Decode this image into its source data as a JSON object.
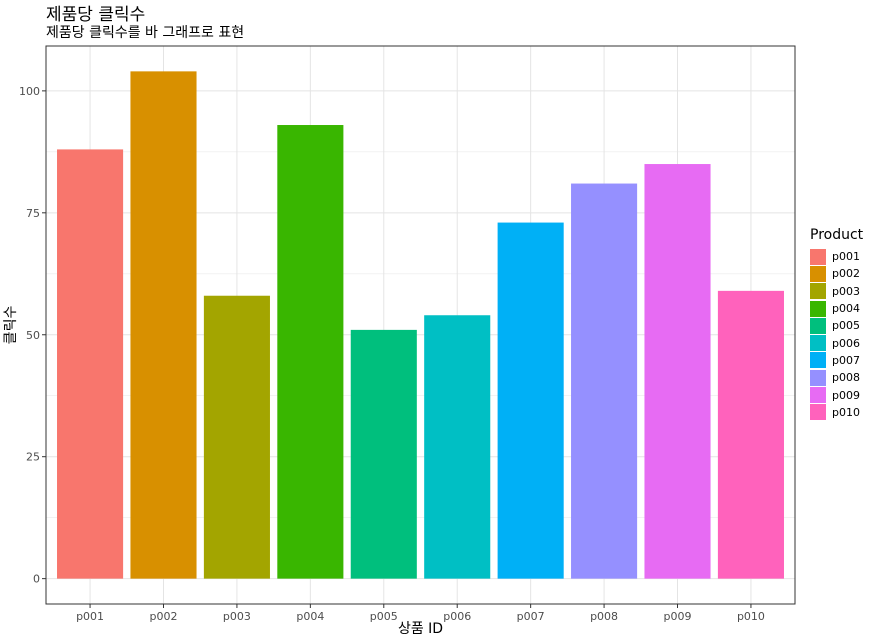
{
  "chart_data": {
    "type": "bar",
    "title": "제품당 클릭수",
    "subtitle": "제품당 클릭수를 바 그래프로 표현",
    "xlabel": "상품 ID",
    "ylabel": "클릭수",
    "categories": [
      "p001",
      "p002",
      "p003",
      "p004",
      "p005",
      "p006",
      "p007",
      "p008",
      "p009",
      "p010"
    ],
    "values": [
      88,
      104,
      58,
      93,
      51,
      54,
      73,
      81,
      85,
      59
    ],
    "colors": [
      "#F8766D",
      "#D89000",
      "#A3A500",
      "#39B600",
      "#00BF7D",
      "#00BFC4",
      "#00B0F6",
      "#9590FF",
      "#E76BF3",
      "#FF62BC"
    ],
    "ylim": [
      0,
      110
    ],
    "yticks": [
      0,
      25,
      50,
      75,
      100
    ],
    "grid": true,
    "legend_title": "Product",
    "legend_position": "right"
  }
}
